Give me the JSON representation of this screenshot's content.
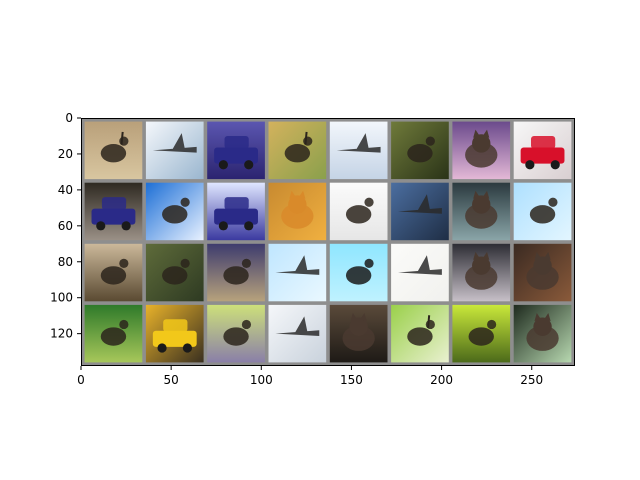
{
  "figure": {
    "image_grid": {
      "rows": 4,
      "cols": 8,
      "tiles": [
        [
          "ostrich",
          "airplane",
          "car",
          "ostrich",
          "airplane",
          "bird",
          "cat",
          "car"
        ],
        [
          "car",
          "bird",
          "car",
          "cat",
          "bird",
          "airplane",
          "cat",
          "bird"
        ],
        [
          "bird",
          "bird",
          "bird",
          "airplane",
          "bird",
          "airplane",
          "cat",
          "cat"
        ],
        [
          "bird",
          "car",
          "bird",
          "airplane",
          "cat",
          "ostrich",
          "bird",
          "cat"
        ]
      ]
    },
    "x_axis": {
      "range": [
        0,
        274
      ],
      "ticks": [
        0,
        50,
        100,
        150,
        200,
        250
      ],
      "tick_labels": [
        "0",
        "50",
        "100",
        "150",
        "200",
        "250"
      ]
    },
    "y_axis": {
      "range": [
        0,
        138
      ],
      "inverted": true,
      "ticks": [
        0,
        20,
        40,
        60,
        80,
        100,
        120
      ],
      "tick_labels": [
        "0",
        "20",
        "40",
        "60",
        "80",
        "100",
        "120"
      ]
    }
  }
}
